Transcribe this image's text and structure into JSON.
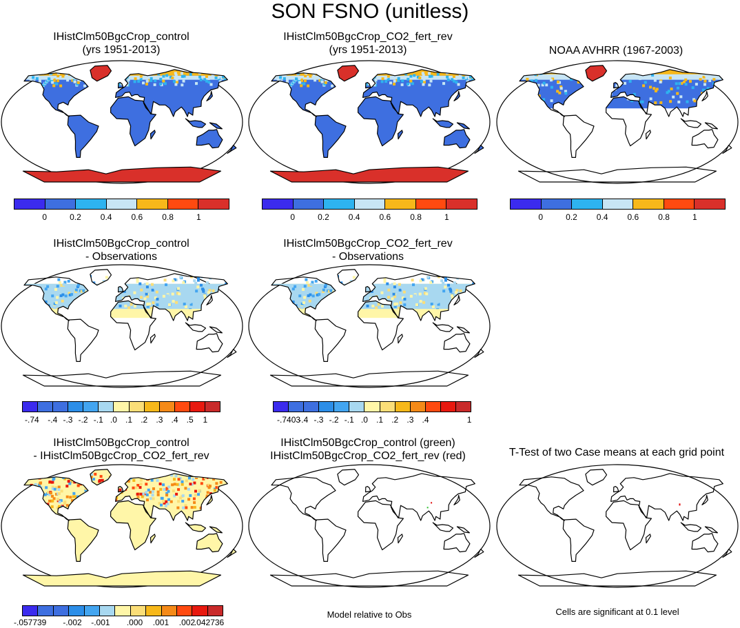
{
  "title": "SON FSNO (unitless)",
  "colors": {
    "c0": "#3B2BEE",
    "c1": "#3E6FE0",
    "c2": "#2EB3F0",
    "c3": "#C7E5F5",
    "c4": "#F7B81A",
    "c5": "#FF4A10",
    "c6": "#D9302A",
    "d_neg4": "#3E6FE0",
    "d_neg3": "#2C8EE8",
    "d_neg2": "#43A5F0",
    "d_neg1": "#A8D8F0",
    "d_0": "#FFF6A8",
    "d_1": "#FBDE78",
    "d_2": "#F7B81A",
    "d_3": "#F58A18",
    "d_4": "#FF4A10",
    "d_5": "#E8190F",
    "d_6": "#C92A2A"
  },
  "panels": [
    {
      "id": "control",
      "title_line1": "IHistClm50BgcCrop_control",
      "title_line2": "(yrs 1951-2013)"
    },
    {
      "id": "co2",
      "title_line1": "IHistClm50BgcCrop_CO2_fert_rev",
      "title_line2": "(yrs 1951-2013)"
    },
    {
      "id": "obs",
      "title_line1": "NOAA AVHRR (1967-2003)",
      "title_line2": ""
    },
    {
      "id": "control_obs",
      "title_line1": "IHistClm50BgcCrop_control",
      "title_line2": "- Observations"
    },
    {
      "id": "co2_obs",
      "title_line1": "IHistClm50BgcCrop_CO2_fert_rev",
      "title_line2": "- Observations"
    },
    {
      "id": "diff",
      "title_line1": "IHistClm50BgcCrop_control",
      "title_line2": "- IHistClm50BgcCrop_CO2_fert_rev"
    },
    {
      "id": "rel",
      "title_line1": "IHistClm50BgcCrop_control (green)",
      "title_line2": "IHistClm50BgcCrop_CO2_fert_rev (red)"
    },
    {
      "id": "ttest",
      "title_line1": "T-Test of two Case means at each grid point",
      "title_line2": ""
    }
  ],
  "colorbars": {
    "abs": {
      "labels": [
        "0",
        "0.2",
        "0.4",
        "0.6",
        "0.8",
        "1"
      ]
    },
    "bias1": {
      "labels": [
        "-.74",
        "-.4",
        "-.3",
        "-.2",
        "-.1",
        ".0",
        ".1",
        ".2",
        ".3",
        ".4",
        ".5",
        "1"
      ]
    },
    "bias2": {
      "labels": [
        "-.7403",
        "-.4",
        "-.3",
        "-.2",
        "-.1",
        ".0",
        ".1",
        ".2",
        ".3",
        ".4",
        "1"
      ]
    },
    "diff": {
      "labels": [
        "-.057739",
        "-.002",
        "-.001",
        ".000",
        ".001",
        ".002",
        ".042736"
      ]
    }
  },
  "notes": {
    "rel": "Model relative to Obs",
    "ttest": "Cells are significant at 0.1 level"
  }
}
